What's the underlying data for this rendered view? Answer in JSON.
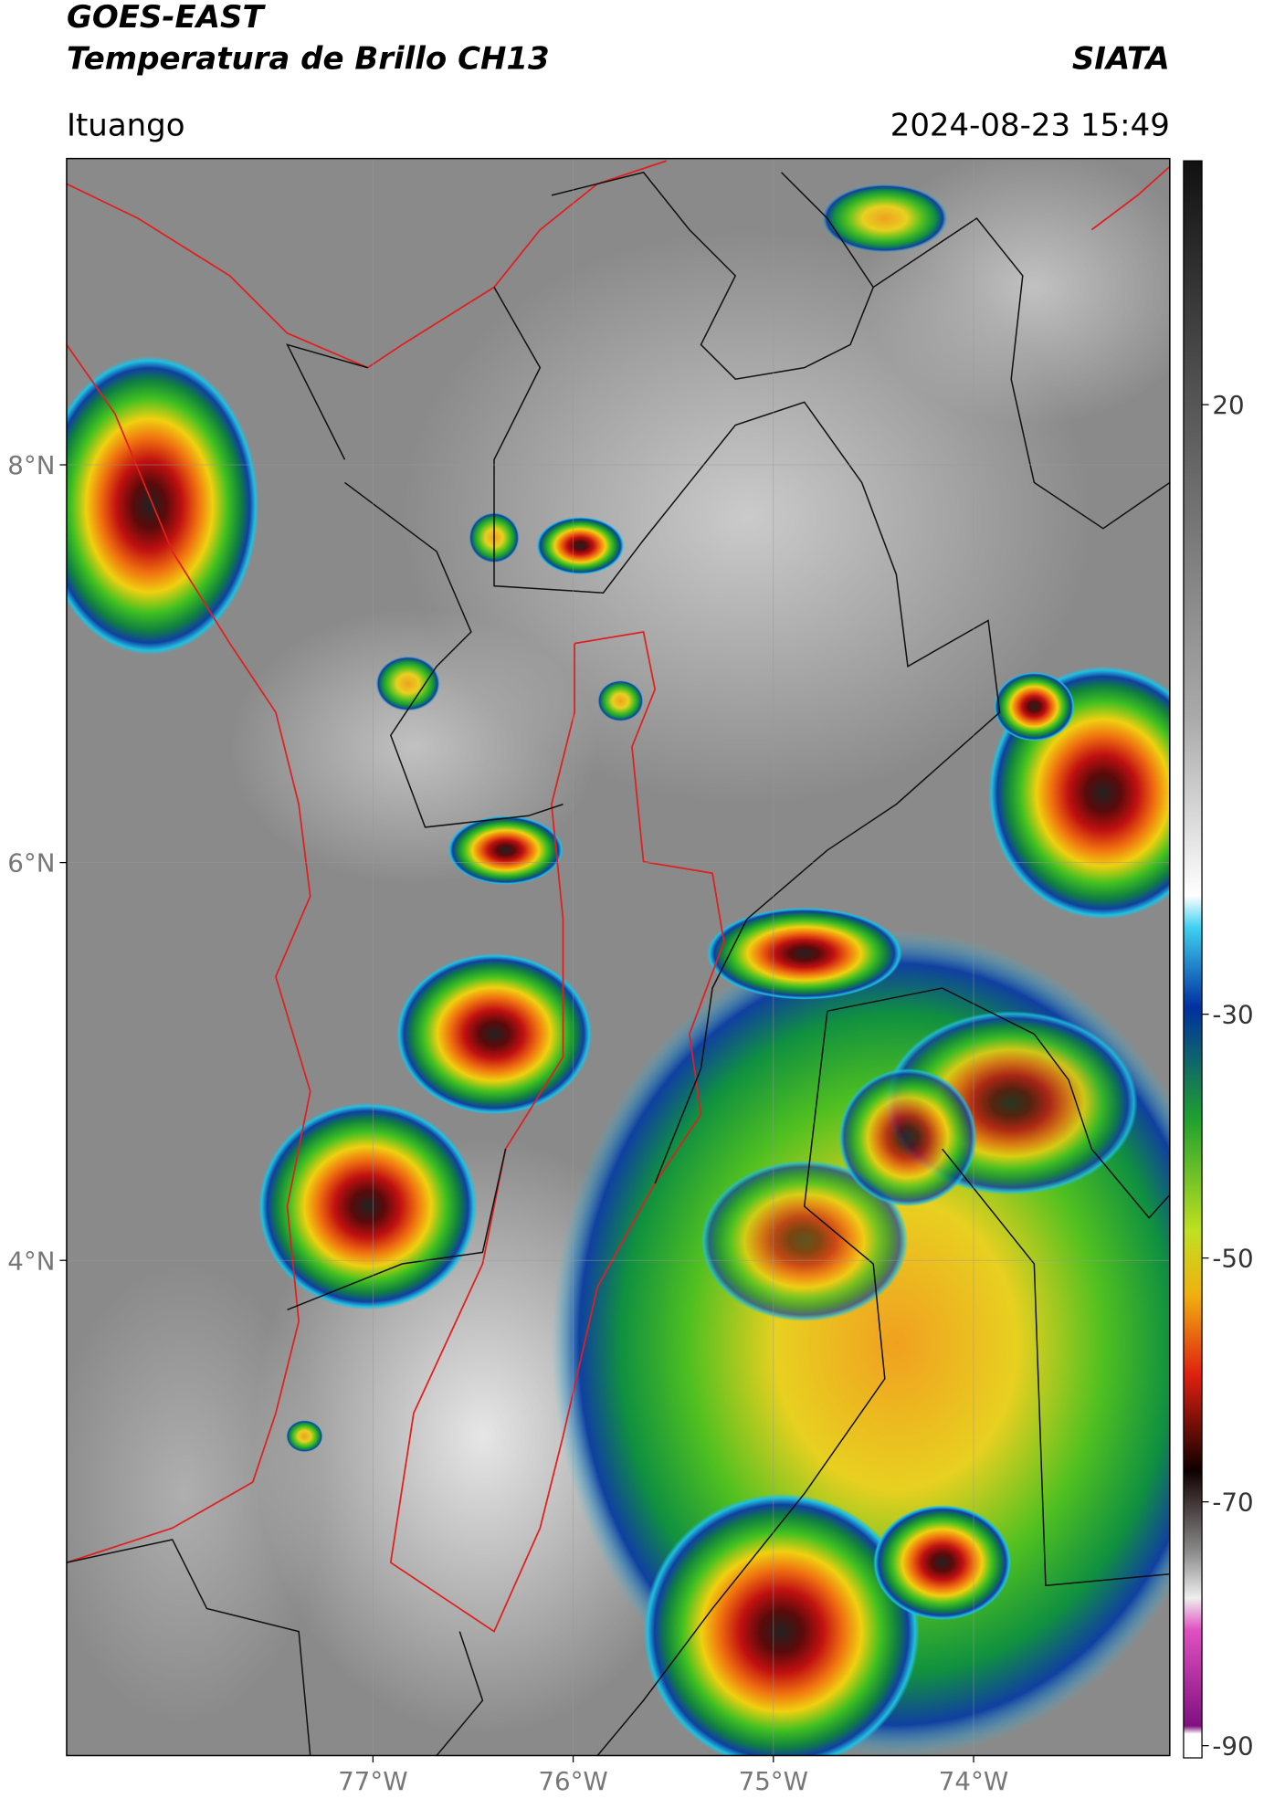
{
  "header": {
    "title": "GOES-EAST",
    "subtitle": "Temperatura de Brillo CH13",
    "source": "SIATA",
    "location": "Ituango",
    "datetime": "2024-08-23 15:49"
  },
  "map": {
    "xlim": [
      -78.53,
      -73.02
    ],
    "ylim": [
      1.51,
      9.54
    ],
    "xticks": [
      {
        "value": -77,
        "label": "77°W"
      },
      {
        "value": -76,
        "label": "76°W"
      },
      {
        "value": -75,
        "label": "75°W"
      },
      {
        "value": -74,
        "label": "74°W"
      }
    ],
    "yticks": [
      {
        "value": 4,
        "label": "4°N"
      },
      {
        "value": 6,
        "label": "6°N"
      },
      {
        "value": 8,
        "label": "8°N"
      }
    ],
    "grid": true
  },
  "colorbar": {
    "lim": [
      -91,
      40
    ],
    "ticks": [
      20,
      -30,
      -50,
      -70,
      -90
    ]
  }
}
